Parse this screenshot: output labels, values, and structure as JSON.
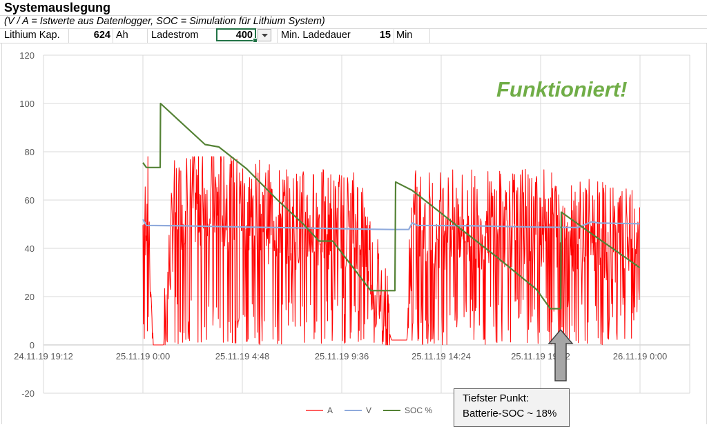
{
  "sheet": {
    "title": "Systemauslegung",
    "subtitle": "(V / A = Istwerte aus Datenlogger, SOC = Simulation für Lithium System)",
    "capacity_label": "Lithium Kap.",
    "capacity_value": "624",
    "capacity_unit": "Ah",
    "charge_current_label": "Ladestrom",
    "charge_current_value": "400",
    "dropdown_icon": "chevron-down-icon",
    "min_charge_label": "Min. Ladedauer",
    "min_charge_value": "15",
    "min_charge_unit": "Min"
  },
  "chart_data": {
    "type": "line",
    "title": "",
    "xlabel": "",
    "ylabel": "",
    "ylim": [
      -20,
      120
    ],
    "yticks": [
      -20,
      0,
      20,
      40,
      60,
      80,
      100,
      120
    ],
    "xlim": [
      "2019-11-24 19:12",
      "2019-11-26 02:24"
    ],
    "xtick_labels": [
      "24.11.19 19:12",
      "25.11.19 0:00",
      "25.11.19 4:48",
      "25.11.19 9:36",
      "25.11.19 14:24",
      "25.11.19 19:12",
      "26.11.19 0:00"
    ],
    "grid": true,
    "legend_position": "bottom",
    "series": [
      {
        "name": "A",
        "color": "#ff0000",
        "noisy": true,
        "envelope": [
          [
            "2019-11-25 00:00",
            45
          ],
          [
            "2019-11-25 00:15",
            60
          ],
          [
            "2019-11-25 00:30",
            0
          ],
          [
            "2019-11-25 01:00",
            0
          ],
          [
            "2019-11-25 01:30",
            55
          ],
          [
            "2019-11-25 03:00",
            60
          ],
          [
            "2019-11-25 05:00",
            55
          ],
          [
            "2019-11-25 07:00",
            50
          ],
          [
            "2019-11-25 09:00",
            50
          ],
          [
            "2019-11-25 10:30",
            50
          ],
          [
            "2019-11-25 12:00",
            2
          ],
          [
            "2019-11-25 12:45",
            2
          ],
          [
            "2019-11-25 13:00",
            50
          ],
          [
            "2019-11-25 16:00",
            50
          ],
          [
            "2019-11-25 19:00",
            50
          ],
          [
            "2019-11-25 20:30",
            50
          ],
          [
            "2019-11-25 22:00",
            45
          ],
          [
            "2019-11-25 23:59",
            40
          ]
        ]
      },
      {
        "name": "V",
        "color": "#8faadc",
        "values": [
          [
            "2019-11-25 00:00",
            52
          ],
          [
            "2019-11-25 00:10",
            49.5
          ],
          [
            "2019-11-25 02:00",
            49.3
          ],
          [
            "2019-11-25 05:00",
            48.8
          ],
          [
            "2019-11-25 08:00",
            48.4
          ],
          [
            "2019-11-25 11:00",
            47.9
          ],
          [
            "2019-11-25 12:00",
            47.8
          ],
          [
            "2019-11-25 12:50",
            47.8
          ],
          [
            "2019-11-25 13:00",
            50.5
          ],
          [
            "2019-11-25 13:15",
            49.5
          ],
          [
            "2019-11-25 16:00",
            49.3
          ],
          [
            "2019-11-25 19:00",
            48.8
          ],
          [
            "2019-11-25 21:00",
            48.6
          ],
          [
            "2019-11-25 21:40",
            51
          ],
          [
            "2019-11-25 22:00",
            50.5
          ],
          [
            "2019-11-25 23:59",
            50.2
          ]
        ]
      },
      {
        "name": "SOC %",
        "color": "#548235",
        "values": [
          [
            "2019-11-25 00:00",
            75.5
          ],
          [
            "2019-11-25 00:10",
            73.5
          ],
          [
            "2019-11-25 00:50",
            73.5
          ],
          [
            "2019-11-25 00:51",
            100
          ],
          [
            "2019-11-25 03:00",
            83
          ],
          [
            "2019-11-25 03:40",
            82
          ],
          [
            "2019-11-25 05:00",
            73
          ],
          [
            "2019-11-25 06:30",
            60
          ],
          [
            "2019-11-25 07:45",
            50
          ],
          [
            "2019-11-25 08:30",
            43
          ],
          [
            "2019-11-25 09:10",
            43
          ],
          [
            "2019-11-25 11:00",
            22.5
          ],
          [
            "2019-11-25 11:45",
            22.5
          ],
          [
            "2019-11-25 12:10",
            22.5
          ],
          [
            "2019-11-25 12:12",
            67.5
          ],
          [
            "2019-11-25 13:00",
            64
          ],
          [
            "2019-11-25 14:20",
            55
          ],
          [
            "2019-11-25 15:30",
            47
          ],
          [
            "2019-11-25 17:00",
            37
          ],
          [
            "2019-11-25 19:00",
            23
          ],
          [
            "2019-11-25 19:40",
            15
          ],
          [
            "2019-11-25 20:10",
            15
          ],
          [
            "2019-11-25 20:12",
            55
          ],
          [
            "2019-11-25 21:40",
            46
          ],
          [
            "2019-11-25 23:00",
            38
          ],
          [
            "2019-11-25 23:59",
            32
          ]
        ]
      }
    ],
    "annotations": {
      "status_text": "Funktioniert!",
      "callout_line1": "Tiefster Punkt:",
      "callout_line2": "Batterie-SOC ~ 18%",
      "arrow_target": "2019-11-25 20:10"
    }
  }
}
